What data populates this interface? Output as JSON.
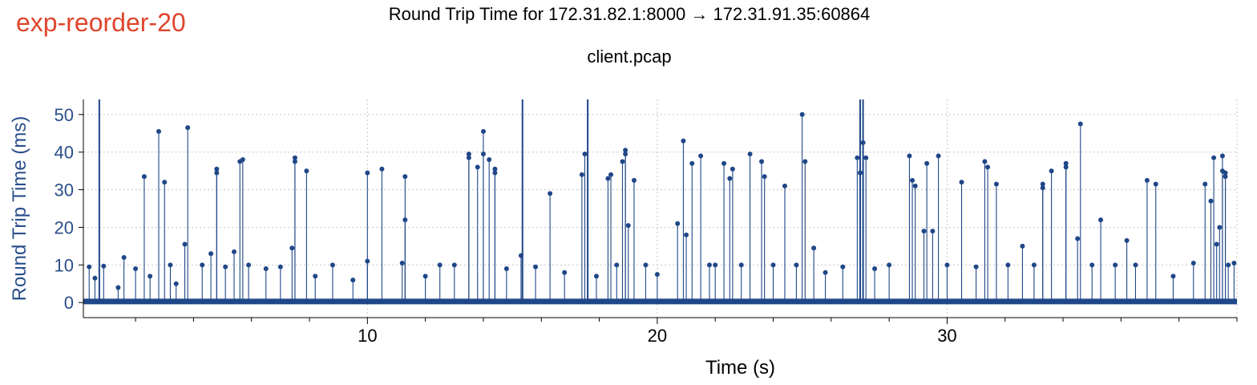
{
  "header": {
    "tag": "exp-reorder-20",
    "title": "Round Trip Time for 172.31.82.1:8000 → 172.31.91.35:60864",
    "subtitle": "client.pcap"
  },
  "colors": {
    "tag": "#e0452c",
    "series": "#1f4788",
    "axis_label": "#2b4f8a",
    "grid": "#c8c8c8"
  },
  "chart_data": {
    "type": "scatter",
    "style": "impulse stems with point markers",
    "xlabel": "Time (s)",
    "ylabel": "Round Trip Time (ms)",
    "xlim": [
      0.2,
      40.0
    ],
    "ylim": [
      -4,
      54
    ],
    "xticks": [
      10,
      20,
      30
    ],
    "yticks": [
      0,
      10,
      20,
      30,
      40,
      50
    ],
    "grid": true,
    "baseline_ms": 0.3,
    "clipped_spikes_s": [
      0.75,
      15.35,
      17.6,
      27.0,
      27.1
    ],
    "series": [
      {
        "values": [
          [
            0.4,
            9.5
          ],
          [
            0.6,
            6.5
          ],
          [
            0.9,
            9.7
          ],
          [
            1.4,
            4.0
          ],
          [
            1.6,
            12.0
          ],
          [
            2.0,
            9.0
          ],
          [
            2.3,
            33.5
          ],
          [
            2.5,
            7.0
          ],
          [
            2.8,
            45.5
          ],
          [
            3.0,
            32.0
          ],
          [
            3.2,
            10.0
          ],
          [
            3.4,
            5.0
          ],
          [
            3.7,
            15.5
          ],
          [
            3.8,
            46.5
          ],
          [
            4.3,
            10.0
          ],
          [
            4.6,
            13.0
          ],
          [
            4.8,
            35.5
          ],
          [
            4.8,
            34.5
          ],
          [
            5.1,
            9.5
          ],
          [
            5.4,
            13.5
          ],
          [
            5.6,
            37.5
          ],
          [
            5.7,
            38.0
          ],
          [
            5.9,
            10.0
          ],
          [
            6.5,
            9.0
          ],
          [
            7.0,
            9.5
          ],
          [
            7.4,
            14.5
          ],
          [
            7.5,
            38.5
          ],
          [
            7.5,
            37.5
          ],
          [
            7.9,
            35.0
          ],
          [
            8.2,
            7.0
          ],
          [
            8.8,
            10.0
          ],
          [
            9.5,
            6.0
          ],
          [
            10.0,
            11.0
          ],
          [
            10.0,
            34.5
          ],
          [
            10.5,
            35.5
          ],
          [
            11.2,
            10.5
          ],
          [
            11.3,
            33.5
          ],
          [
            11.3,
            22.0
          ],
          [
            12.0,
            7.0
          ],
          [
            12.5,
            10.0
          ],
          [
            13.0,
            10.0
          ],
          [
            13.5,
            39.5
          ],
          [
            13.5,
            38.5
          ],
          [
            13.8,
            36.0
          ],
          [
            14.0,
            45.5
          ],
          [
            14.0,
            39.5
          ],
          [
            14.2,
            38.0
          ],
          [
            14.4,
            35.5
          ],
          [
            14.4,
            34.5
          ],
          [
            14.8,
            9.0
          ],
          [
            15.3,
            12.5
          ],
          [
            15.8,
            9.5
          ],
          [
            16.3,
            29.0
          ],
          [
            16.8,
            8.0
          ],
          [
            17.4,
            34.0
          ],
          [
            17.5,
            39.5
          ],
          [
            17.9,
            7.0
          ],
          [
            18.3,
            33.0
          ],
          [
            18.4,
            34.0
          ],
          [
            18.6,
            10.0
          ],
          [
            18.8,
            37.5
          ],
          [
            18.9,
            40.5
          ],
          [
            18.9,
            39.5
          ],
          [
            19.0,
            20.5
          ],
          [
            19.2,
            32.5
          ],
          [
            19.6,
            10.0
          ],
          [
            20.0,
            7.5
          ],
          [
            20.7,
            21.0
          ],
          [
            20.9,
            43.0
          ],
          [
            21.0,
            18.0
          ],
          [
            21.2,
            37.0
          ],
          [
            21.5,
            39.0
          ],
          [
            21.8,
            10.0
          ],
          [
            22.0,
            10.0
          ],
          [
            22.3,
            37.0
          ],
          [
            22.5,
            33.0
          ],
          [
            22.6,
            35.5
          ],
          [
            22.9,
            10.0
          ],
          [
            23.2,
            39.5
          ],
          [
            23.6,
            37.5
          ],
          [
            23.7,
            33.5
          ],
          [
            24.0,
            10.0
          ],
          [
            24.4,
            31.0
          ],
          [
            24.8,
            10.0
          ],
          [
            25.0,
            50.0
          ],
          [
            25.1,
            37.5
          ],
          [
            25.4,
            14.5
          ],
          [
            25.8,
            8.0
          ],
          [
            26.4,
            9.5
          ],
          [
            26.9,
            38.5
          ],
          [
            27.0,
            34.5
          ],
          [
            27.1,
            42.5
          ],
          [
            27.2,
            38.5
          ],
          [
            27.5,
            9.0
          ],
          [
            28.0,
            10.0
          ],
          [
            28.7,
            39.0
          ],
          [
            28.8,
            32.5
          ],
          [
            28.9,
            31.0
          ],
          [
            29.2,
            19.0
          ],
          [
            29.3,
            37.0
          ],
          [
            29.5,
            19.0
          ],
          [
            29.7,
            39.0
          ],
          [
            30.0,
            10.0
          ],
          [
            30.5,
            32.0
          ],
          [
            31.0,
            9.5
          ],
          [
            31.3,
            37.5
          ],
          [
            31.4,
            36.0
          ],
          [
            31.7,
            31.5
          ],
          [
            32.1,
            10.0
          ],
          [
            32.6,
            15.0
          ],
          [
            33.0,
            10.0
          ],
          [
            33.3,
            31.5
          ],
          [
            33.3,
            30.5
          ],
          [
            33.6,
            35.0
          ],
          [
            34.1,
            37.0
          ],
          [
            34.1,
            36.0
          ],
          [
            34.5,
            17.0
          ],
          [
            34.6,
            47.5
          ],
          [
            35.0,
            10.0
          ],
          [
            35.3,
            22.0
          ],
          [
            35.8,
            10.0
          ],
          [
            36.2,
            16.5
          ],
          [
            36.5,
            10.0
          ],
          [
            36.9,
            32.5
          ],
          [
            37.2,
            31.5
          ],
          [
            37.8,
            7.0
          ],
          [
            38.5,
            10.5
          ],
          [
            38.9,
            31.5
          ],
          [
            39.1,
            27.0
          ],
          [
            39.2,
            38.5
          ],
          [
            39.3,
            15.5
          ],
          [
            39.4,
            20.0
          ],
          [
            39.5,
            39.0
          ],
          [
            39.5,
            35.0
          ],
          [
            39.6,
            34.5
          ],
          [
            39.6,
            33.5
          ],
          [
            39.7,
            10.0
          ],
          [
            39.9,
            10.5
          ]
        ]
      }
    ]
  }
}
